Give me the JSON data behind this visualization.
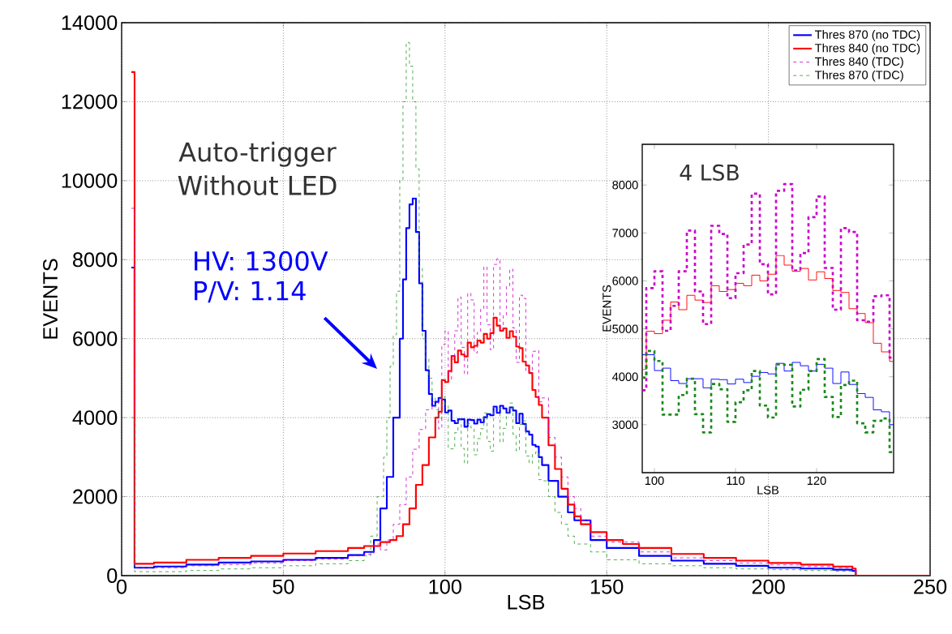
{
  "chart_data": [
    {
      "type": "step",
      "xlabel": "LSB",
      "ylabel": "EVENTS",
      "xlim": [
        0,
        250
      ],
      "ylim": [
        0,
        14000
      ],
      "xticks": [
        0,
        50,
        100,
        150,
        200,
        250
      ],
      "yticks": [
        0,
        2000,
        4000,
        6000,
        8000,
        10000,
        12000,
        14000
      ],
      "grid": true,
      "legend": "top right",
      "annotations": [
        "Auto-trigger",
        "Without LED",
        "HV: 1300V",
        "P/V: 1.14"
      ],
      "series": [
        {
          "name": "Thres 870 (no TDC)",
          "color": "#0000ff",
          "line_style": "solid",
          "x": [
            3,
            4,
            10,
            20,
            30,
            40,
            50,
            60,
            70,
            75,
            78,
            80,
            82,
            84,
            86,
            87,
            88,
            89,
            90,
            91,
            92,
            93,
            94,
            95,
            96,
            97,
            98,
            99,
            100,
            101,
            102,
            103,
            104,
            105,
            106,
            107,
            108,
            109,
            110,
            111,
            112,
            113,
            114,
            115,
            116,
            117,
            118,
            119,
            120,
            121,
            122,
            123,
            124,
            125,
            126,
            127,
            128,
            129,
            130,
            132,
            135,
            138,
            140,
            145,
            150,
            160,
            170,
            180,
            190,
            200,
            210,
            220,
            226,
            227
          ],
          "values": [
            7800,
            200,
            230,
            280,
            330,
            360,
            400,
            450,
            520,
            600,
            900,
            1700,
            2500,
            4000,
            6000,
            7500,
            8800,
            9400,
            9550,
            8700,
            7400,
            6200,
            5200,
            4600,
            4300,
            4400,
            4500,
            4460,
            4130,
            4180,
            3920,
            3860,
            3960,
            3960,
            3770,
            3950,
            3940,
            3850,
            3950,
            3880,
            4010,
            4090,
            4060,
            4280,
            4120,
            4300,
            4230,
            4120,
            4260,
            4180,
            3860,
            4100,
            3840,
            3650,
            3570,
            3310,
            3270,
            3000,
            2800,
            2400,
            2000,
            1600,
            1400,
            900,
            700,
            500,
            380,
            300,
            250,
            200,
            180,
            150,
            120,
            0
          ]
        },
        {
          "name": "Thres 840 (no TDC)",
          "color": "#ff0000",
          "line_style": "solid",
          "x": [
            3,
            4,
            10,
            20,
            30,
            40,
            50,
            60,
            70,
            75,
            80,
            83,
            85,
            87,
            89,
            91,
            93,
            95,
            97,
            98,
            99,
            100,
            101,
            102,
            103,
            104,
            105,
            106,
            107,
            108,
            109,
            110,
            111,
            112,
            113,
            114,
            115,
            116,
            117,
            118,
            119,
            120,
            121,
            122,
            123,
            124,
            125,
            126,
            127,
            128,
            129,
            130,
            132,
            134,
            136,
            138,
            140,
            142,
            145,
            150,
            155,
            160,
            170,
            180,
            190,
            200,
            210,
            220,
            226,
            227,
            250
          ],
          "values": [
            12750,
            300,
            330,
            400,
            450,
            500,
            560,
            620,
            700,
            750,
            850,
            900,
            1000,
            1300,
            1700,
            2300,
            2800,
            3500,
            4000,
            4150,
            4950,
            4900,
            5180,
            5560,
            5400,
            5700,
            5600,
            5550,
            5900,
            5780,
            5820,
            5950,
            5900,
            6120,
            6000,
            6140,
            6530,
            6330,
            6200,
            6260,
            6020,
            6190,
            6050,
            5800,
            5760,
            5420,
            5320,
            5130,
            4700,
            4520,
            4320,
            4000,
            3300,
            2700,
            2200,
            1800,
            1500,
            1300,
            1100,
            900,
            800,
            700,
            550,
            450,
            380,
            320,
            280,
            230,
            180,
            0,
            0
          ]
        },
        {
          "name": "Thres 840 (TDC)",
          "color": "#cc00cc",
          "line_style": "dashed",
          "x": [
            3,
            4,
            10,
            20,
            30,
            40,
            50,
            60,
            70,
            75,
            78,
            80,
            82,
            84,
            86,
            88,
            90,
            92,
            94,
            96,
            98,
            99,
            100,
            101,
            102,
            103,
            104,
            105,
            106,
            107,
            108,
            109,
            110,
            111,
            112,
            113,
            114,
            115,
            116,
            117,
            118,
            119,
            120,
            121,
            122,
            123,
            124,
            125,
            126,
            127,
            128,
            129,
            130,
            132,
            134,
            136,
            138,
            140,
            142,
            145,
            150,
            160,
            170,
            180,
            190,
            200,
            210,
            220,
            226,
            227
          ],
          "values": [
            9300,
            200,
            200,
            250,
            280,
            320,
            380,
            420,
            500,
            540,
            800,
            650,
            900,
            1300,
            1800,
            2500,
            3200,
            3700,
            4200,
            4400,
            3720,
            5850,
            6200,
            4960,
            5480,
            6200,
            7050,
            5780,
            5100,
            7150,
            6980,
            5640,
            6160,
            6760,
            7820,
            6350,
            5720,
            7880,
            8020,
            6220,
            6580,
            7330,
            7760,
            6270,
            5400,
            7100,
            7020,
            5180,
            5150,
            5680,
            5700,
            4400,
            4500,
            3500,
            3000,
            2500,
            2000,
            1700,
            1400,
            1000,
            850,
            600,
            450,
            380,
            320,
            270,
            230,
            200,
            150,
            0
          ]
        },
        {
          "name": "Thres 870 (TDC)",
          "color": "#2a9a2a",
          "line_style": "dashed",
          "x": [
            3,
            4,
            10,
            20,
            30,
            40,
            50,
            60,
            70,
            75,
            77,
            79,
            81,
            82,
            83,
            84,
            85,
            86,
            87,
            88,
            89,
            90,
            91,
            92,
            93,
            94,
            95,
            96,
            97,
            98,
            99,
            100,
            101,
            102,
            103,
            104,
            105,
            106,
            107,
            108,
            109,
            110,
            111,
            112,
            113,
            114,
            115,
            116,
            117,
            118,
            119,
            120,
            121,
            122,
            123,
            124,
            125,
            126,
            127,
            128,
            129,
            130,
            132,
            134,
            136,
            138,
            140,
            145,
            150,
            160,
            170,
            180,
            190,
            200,
            210,
            220,
            226,
            227
          ],
          "values": [
            4000,
            100,
            100,
            130,
            170,
            200,
            250,
            300,
            380,
            500,
            1000,
            2000,
            3000,
            4000,
            5300,
            6100,
            7200,
            10000,
            12000,
            13500,
            12900,
            12000,
            10300,
            7800,
            6000,
            5500,
            5000,
            4500,
            4200,
            3980,
            4540,
            4330,
            3210,
            3210,
            3620,
            3960,
            3220,
            2840,
            3850,
            3740,
            3060,
            3470,
            3720,
            4120,
            3400,
            3150,
            4260,
            4250,
            3380,
            3730,
            4120,
            4370,
            3580,
            3160,
            3830,
            3920,
            3030,
            2840,
            3080,
            3130,
            2430,
            2400,
            2000,
            1600,
            1300,
            1000,
            800,
            600,
            400,
            300,
            250,
            200,
            170,
            150,
            130,
            110,
            90,
            0
          ]
        }
      ]
    },
    {
      "type": "step",
      "xlabel": "LSB",
      "ylabel": "EVENTS",
      "xlim": [
        98.5,
        129.5
      ],
      "ylim": [
        2000,
        8850
      ],
      "xticks": [
        100,
        110,
        120
      ],
      "yticks": [
        3000,
        4000,
        5000,
        6000,
        7000,
        8000
      ],
      "annotations": [
        "4 LSB"
      ],
      "x": [
        98.5,
        99,
        100,
        101,
        102,
        103,
        104,
        105,
        106,
        107,
        108,
        109,
        110,
        111,
        112,
        113,
        114,
        115,
        116,
        117,
        118,
        119,
        120,
        121,
        122,
        123,
        124,
        125,
        126,
        127,
        128,
        129,
        129.5
      ],
      "series": [
        {
          "color": "#ff0000",
          "line_style": "solid",
          "values": [
            4150,
            4950,
            4900,
            5180,
            5560,
            5400,
            5700,
            5600,
            5550,
            5900,
            5780,
            5820,
            5950,
            5900,
            6120,
            6000,
            6140,
            6530,
            6330,
            6200,
            6260,
            6020,
            6190,
            6050,
            5800,
            5760,
            5420,
            5320,
            5130,
            4700,
            4520,
            4320,
            4320
          ]
        },
        {
          "color": "#cc00cc",
          "line_style": "dashed",
          "values": [
            3720,
            5850,
            6200,
            4960,
            5480,
            6200,
            7050,
            5780,
            5100,
            7150,
            6980,
            5640,
            6160,
            6760,
            7820,
            6350,
            5720,
            7880,
            8020,
            6220,
            6580,
            7330,
            7760,
            6270,
            5400,
            7100,
            7020,
            5180,
            5150,
            5680,
            5700,
            4400,
            4400
          ]
        },
        {
          "color": "#0000ff",
          "line_style": "solid",
          "values": [
            4460,
            4460,
            4130,
            4180,
            3920,
            3860,
            3960,
            3960,
            3770,
            3950,
            3940,
            3850,
            3950,
            3880,
            4010,
            4090,
            4060,
            4280,
            4120,
            4300,
            4230,
            4120,
            4260,
            4180,
            3860,
            4100,
            3840,
            3650,
            3570,
            3310,
            3270,
            3000,
            3000
          ]
        },
        {
          "color": "#1a8a1a",
          "line_style": "dashed",
          "values": [
            3980,
            4540,
            4330,
            3210,
            3210,
            3620,
            3960,
            3220,
            2840,
            3850,
            3740,
            3060,
            3470,
            3720,
            4120,
            3400,
            3150,
            4260,
            4250,
            3380,
            3730,
            4120,
            4370,
            3580,
            3160,
            3830,
            3920,
            3030,
            2840,
            3080,
            3130,
            2430,
            2430
          ]
        }
      ]
    }
  ]
}
